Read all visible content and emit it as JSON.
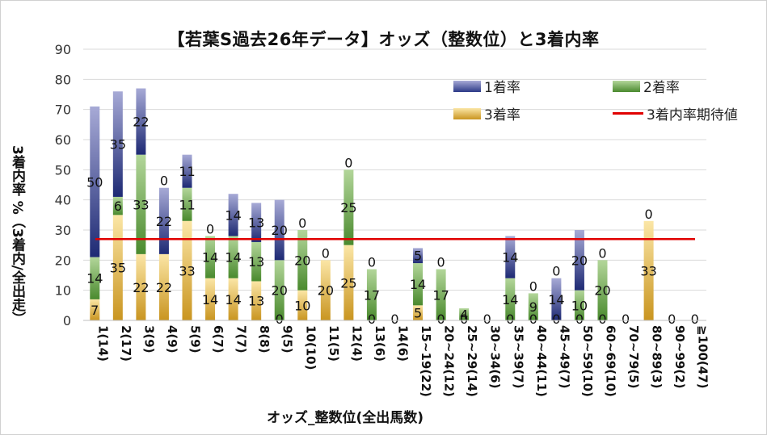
{
  "chart_data": {
    "type": "bar",
    "title": "【若葉S過去26年データ】オッズ（整数位）と3着内率",
    "xlabel": "オッズ_整数位(全出馬数)",
    "ylabel": "3着内率 %（3着内/全出走）",
    "ylim": [
      0,
      90
    ],
    "yticks": [
      0,
      10,
      20,
      30,
      40,
      50,
      60,
      70,
      80,
      90
    ],
    "categories": [
      "1(14)",
      "2(17)",
      "3(9)",
      "4(9)",
      "5(9)",
      "6(7)",
      "7(7)",
      "8(8)",
      "9(5)",
      "10(10)",
      "11(5)",
      "12(4)",
      "13(6)",
      "14(6)",
      "15~19(22)",
      "20~24(12)",
      "25~29(14)",
      "30~34(6)",
      "35~39(7)",
      "40~44(11)",
      "45~49(7)",
      "50~59(10)",
      "60~69(10)",
      "70~79(5)",
      "80~89(3)",
      "90~99(2)",
      "≧100(47)"
    ],
    "series": [
      {
        "name": "3着率",
        "color": "#d4a017",
        "values": [
          7,
          35,
          22,
          22,
          33,
          14,
          14,
          13,
          0,
          10,
          20,
          25,
          0,
          0,
          5,
          0,
          0,
          0,
          0,
          0,
          0,
          0,
          0,
          0,
          33,
          0,
          0
        ]
      },
      {
        "name": "2着率",
        "color": "#4a8a2e",
        "values": [
          14,
          6,
          33,
          0,
          11,
          14,
          14,
          13,
          20,
          20,
          0,
          25,
          17,
          0,
          14,
          17,
          4,
          0,
          14,
          9,
          0,
          10,
          20,
          0,
          0,
          0,
          0
        ]
      },
      {
        "name": "1着率",
        "color": "#2c3a88",
        "values": [
          50,
          35,
          22,
          22,
          11,
          0,
          14,
          13,
          20,
          0,
          0,
          0,
          0,
          0,
          5,
          0,
          0,
          0,
          14,
          0,
          14,
          20,
          0,
          0,
          0,
          0,
          0
        ]
      }
    ],
    "labels": [
      [
        {
          "s": 0,
          "t": "7"
        },
        {
          "s": 1,
          "t": "14"
        },
        {
          "s": 2,
          "t": "50"
        }
      ],
      [
        {
          "s": 0,
          "t": "35"
        },
        {
          "s": 1,
          "t": "6"
        },
        {
          "s": 2,
          "t": "35"
        }
      ],
      [
        {
          "s": 0,
          "t": "22"
        },
        {
          "s": 1,
          "t": "33"
        },
        {
          "s": 2,
          "t": "22"
        }
      ],
      [
        {
          "s": 0,
          "t": "22"
        },
        {
          "s": 1,
          "t": "0"
        },
        {
          "s": 2,
          "t": "22"
        }
      ],
      [
        {
          "s": 0,
          "t": "33"
        },
        {
          "s": 1,
          "t": "11"
        },
        {
          "s": 2,
          "t": "11"
        }
      ],
      [
        {
          "s": 0,
          "t": "14"
        },
        {
          "s": 1,
          "t": "14"
        },
        {
          "s": 2,
          "t": "0"
        }
      ],
      [
        {
          "s": 0,
          "t": "14"
        },
        {
          "s": 1,
          "t": "14"
        },
        {
          "s": 2,
          "t": "14"
        }
      ],
      [
        {
          "s": 0,
          "t": "13"
        },
        {
          "s": 1,
          "t": "13"
        },
        {
          "s": 2,
          "t": "13"
        }
      ],
      [
        {
          "s": 0,
          "t": "0"
        },
        {
          "s": 1,
          "t": "20"
        },
        {
          "s": 2,
          "t": "20"
        }
      ],
      [
        {
          "s": 0,
          "t": "10"
        },
        {
          "s": 1,
          "t": "20"
        },
        {
          "s": 2,
          "t": "0"
        }
      ],
      [
        {
          "s": 0,
          "t": "20"
        },
        {
          "s": 1,
          "t": "0"
        }
      ],
      [
        {
          "s": 0,
          "t": "25"
        },
        {
          "s": 1,
          "t": "25"
        },
        {
          "s": 2,
          "t": "0"
        }
      ],
      [
        {
          "s": 0,
          "t": "0"
        },
        {
          "s": 1,
          "t": "17"
        },
        {
          "s": 2,
          "t": "0"
        }
      ],
      [
        {
          "s": 0,
          "t": "0"
        }
      ],
      [
        {
          "s": 0,
          "t": "5"
        },
        {
          "s": 1,
          "t": "14"
        },
        {
          "s": 2,
          "t": "5"
        }
      ],
      [
        {
          "s": 0,
          "t": "0"
        },
        {
          "s": 1,
          "t": "17"
        },
        {
          "s": 2,
          "t": "0"
        }
      ],
      [
        {
          "s": 0,
          "t": "0"
        },
        {
          "s": 1,
          "t": "4"
        }
      ],
      [
        {
          "s": 0,
          "t": "0"
        }
      ],
      [
        {
          "s": 0,
          "t": "0"
        },
        {
          "s": 1,
          "t": "14"
        },
        {
          "s": 2,
          "t": "14"
        }
      ],
      [
        {
          "s": 0,
          "t": "0"
        },
        {
          "s": 1,
          "t": "9"
        },
        {
          "s": 2,
          "t": "0"
        }
      ],
      [
        {
          "s": 0,
          "t": "0"
        },
        {
          "s": 1,
          "t": "0"
        },
        {
          "s": 2,
          "t": "14"
        }
      ],
      [
        {
          "s": 0,
          "t": "0"
        },
        {
          "s": 1,
          "t": "10"
        },
        {
          "s": 2,
          "t": "20"
        }
      ],
      [
        {
          "s": 0,
          "t": "0"
        },
        {
          "s": 1,
          "t": "20"
        },
        {
          "s": 2,
          "t": "0"
        }
      ],
      [
        {
          "s": 0,
          "t": "0"
        }
      ],
      [
        {
          "s": 0,
          "t": "33"
        },
        {
          "s": 2,
          "t": "0"
        }
      ],
      [
        {
          "s": 0,
          "t": "0"
        }
      ],
      [
        {
          "s": 0,
          "t": "0"
        }
      ]
    ],
    "expected_line": {
      "name": "3着内率期待値",
      "value": 27,
      "color": "#e00000"
    },
    "legend": [
      {
        "name": "1着率",
        "color": "#2c3a88"
      },
      {
        "name": "2着率",
        "color": "#4a8a2e"
      },
      {
        "name": "3着率",
        "color": "#d4a017"
      },
      {
        "name": "3着内率期待値",
        "color": "#e00000"
      }
    ]
  }
}
